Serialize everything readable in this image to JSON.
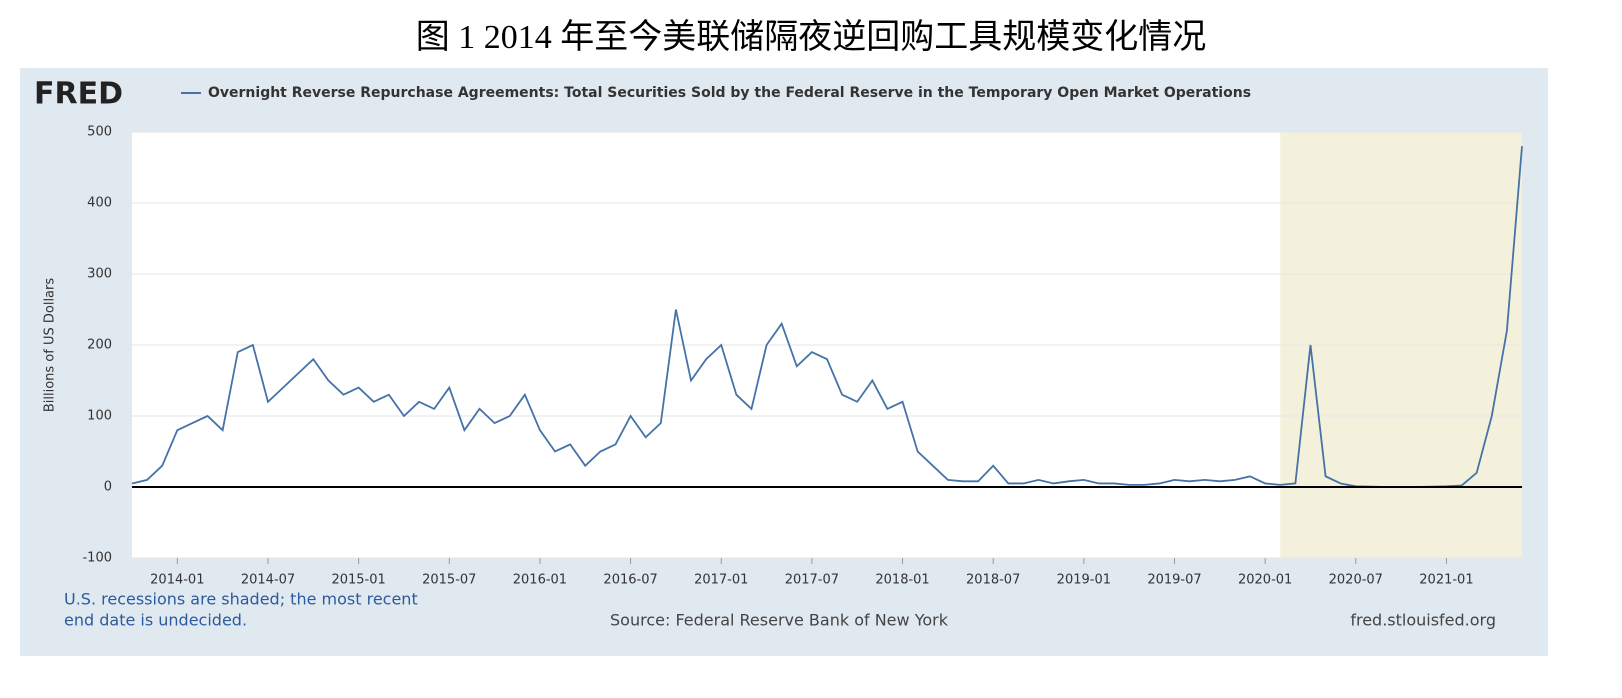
{
  "chart_data": {
    "type": "line",
    "title": "图 1 2014 年至今美联储隔夜逆回购工具规模变化情况",
    "logo": "FRED",
    "ylabel": "Billions of US Dollars",
    "recession_note": [
      "U.S. recessions are shaded; the most recent",
      "end date is undecided."
    ],
    "source": "Source: Federal Reserve Bank of New York",
    "site": "fred.stlouisfed.org",
    "recession_start": "2020-02",
    "xlim": [
      "2013-10",
      "2021-06"
    ],
    "xticks": [
      "2014-01",
      "2014-07",
      "2015-01",
      "2015-07",
      "2016-01",
      "2016-07",
      "2017-01",
      "2017-07",
      "2018-01",
      "2018-07",
      "2019-01",
      "2019-07",
      "2020-01",
      "2020-07",
      "2021-01"
    ],
    "ylim": [
      -100,
      500
    ],
    "yticks": [
      -100,
      0,
      100,
      200,
      300,
      400,
      500
    ],
    "grid": true,
    "x": [
      "2013-10",
      "2013-11",
      "2013-12",
      "2014-01",
      "2014-02",
      "2014-03",
      "2014-04",
      "2014-05",
      "2014-06",
      "2014-07",
      "2014-08",
      "2014-09",
      "2014-10",
      "2014-11",
      "2014-12",
      "2015-01",
      "2015-02",
      "2015-03",
      "2015-04",
      "2015-05",
      "2015-06",
      "2015-07",
      "2015-08",
      "2015-09",
      "2015-10",
      "2015-11",
      "2015-12",
      "2016-01",
      "2016-02",
      "2016-03",
      "2016-04",
      "2016-05",
      "2016-06",
      "2016-07",
      "2016-08",
      "2016-09",
      "2016-10",
      "2016-11",
      "2016-12",
      "2017-01",
      "2017-02",
      "2017-03",
      "2017-04",
      "2017-05",
      "2017-06",
      "2017-07",
      "2017-08",
      "2017-09",
      "2017-10",
      "2017-11",
      "2017-12",
      "2018-01",
      "2018-02",
      "2018-03",
      "2018-04",
      "2018-05",
      "2018-06",
      "2018-07",
      "2018-08",
      "2018-09",
      "2018-10",
      "2018-11",
      "2018-12",
      "2019-01",
      "2019-02",
      "2019-03",
      "2019-04",
      "2019-05",
      "2019-06",
      "2019-07",
      "2019-08",
      "2019-09",
      "2019-10",
      "2019-11",
      "2019-12",
      "2020-01",
      "2020-02",
      "2020-03",
      "2020-04",
      "2020-05",
      "2020-06",
      "2020-07",
      "2020-08",
      "2020-09",
      "2020-10",
      "2020-11",
      "2020-12",
      "2021-01",
      "2021-02",
      "2021-03",
      "2021-04",
      "2021-05",
      "2021-06"
    ],
    "series": [
      {
        "name": "Overnight Reverse Repurchase Agreements: Total Securities Sold by the Federal Reserve in the Temporary Open Market Operations",
        "color": "#4572a7",
        "values": [
          5,
          10,
          30,
          80,
          90,
          100,
          80,
          190,
          200,
          120,
          140,
          160,
          180,
          150,
          130,
          140,
          120,
          130,
          100,
          120,
          110,
          140,
          80,
          110,
          90,
          100,
          130,
          80,
          50,
          60,
          30,
          50,
          60,
          100,
          70,
          90,
          250,
          150,
          180,
          200,
          130,
          110,
          200,
          230,
          170,
          190,
          180,
          130,
          120,
          150,
          110,
          120,
          50,
          30,
          10,
          8,
          8,
          30,
          5,
          5,
          10,
          5,
          8,
          10,
          5,
          5,
          3,
          3,
          5,
          10,
          8,
          10,
          8,
          10,
          15,
          5,
          3,
          5,
          200,
          15,
          5,
          1,
          0.5,
          0,
          0,
          0,
          0.5,
          1,
          2,
          20,
          100,
          220,
          480
        ]
      }
    ]
  }
}
